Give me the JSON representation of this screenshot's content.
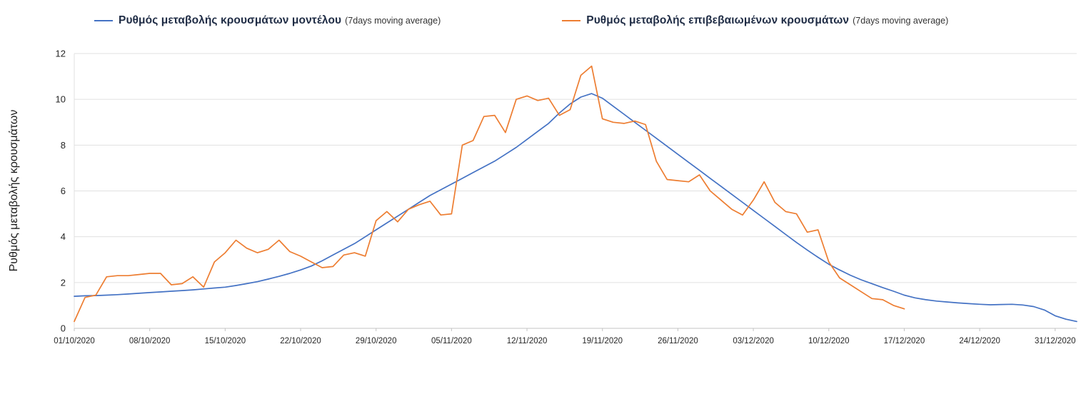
{
  "legend": {
    "items": [
      {
        "label": "Ρυθμός μεταβολής κρουσμάτων μοντέλου",
        "suffix": "(7days moving average)",
        "color": "#4472C4"
      },
      {
        "label": "Ρυθμός μεταβολής επιβεβαιωμένων κρουσμάτων",
        "suffix": "(7days moving average)",
        "color": "#ED7D31"
      }
    ]
  },
  "y_axis": {
    "title": "Ρυθμός μεταβολής κρουσμάτων"
  },
  "chart_data": {
    "type": "line",
    "title": "",
    "xlabel": "",
    "ylabel": "Ρυθμός μεταβολής κρουσμάτων",
    "ylim": [
      0,
      12
    ],
    "y_ticks": [
      0,
      2,
      4,
      6,
      8,
      10,
      12
    ],
    "grid": "horizontal",
    "legend_position": "top",
    "x_unit": "days since 01/10/2020",
    "x_domain_days": 93,
    "x_tick_days": [
      0,
      7,
      14,
      21,
      28,
      35,
      42,
      49,
      56,
      63,
      70,
      77,
      84,
      91
    ],
    "x_tick_labels": [
      "01/10/2020",
      "08/10/2020",
      "15/10/2020",
      "22/10/2020",
      "29/10/2020",
      "05/11/2020",
      "12/11/2020",
      "19/11/2020",
      "26/11/2020",
      "03/12/2020",
      "10/12/2020",
      "17/12/2020",
      "24/12/2020",
      "31/12/2020"
    ],
    "series": [
      {
        "name": "Ρυθμός μεταβολής κρουσμάτων μοντέλου (7days moving average)",
        "color": "#4472C4",
        "start_day": 0,
        "values": [
          1.4,
          1.42,
          1.43,
          1.45,
          1.47,
          1.5,
          1.53,
          1.56,
          1.59,
          1.62,
          1.65,
          1.68,
          1.72,
          1.76,
          1.8,
          1.87,
          1.95,
          2.04,
          2.15,
          2.27,
          2.4,
          2.55,
          2.72,
          2.95,
          3.2,
          3.45,
          3.7,
          4.0,
          4.3,
          4.6,
          4.9,
          5.2,
          5.5,
          5.8,
          6.05,
          6.3,
          6.55,
          6.8,
          7.05,
          7.3,
          7.6,
          7.9,
          8.25,
          8.6,
          8.95,
          9.4,
          9.8,
          10.1,
          10.25,
          10.05,
          9.7,
          9.35,
          9.0,
          8.65,
          8.3,
          7.95,
          7.6,
          7.25,
          6.9,
          6.55,
          6.2,
          5.85,
          5.5,
          5.15,
          4.8,
          4.45,
          4.1,
          3.75,
          3.42,
          3.1,
          2.8,
          2.55,
          2.32,
          2.12,
          1.95,
          1.78,
          1.62,
          1.45,
          1.33,
          1.25,
          1.19,
          1.15,
          1.11,
          1.08,
          1.05,
          1.03,
          1.04,
          1.05,
          1.02,
          0.95,
          0.8,
          0.55,
          0.4,
          0.3
        ]
      },
      {
        "name": "Ρυθμός μεταβολής επιβεβαιωμένων κρουσμάτων (7days moving average)",
        "color": "#ED7D31",
        "start_day": 0,
        "values": [
          0.3,
          1.35,
          1.45,
          2.25,
          2.3,
          2.3,
          2.35,
          2.4,
          2.4,
          1.9,
          1.95,
          2.25,
          1.8,
          2.9,
          3.3,
          3.85,
          3.5,
          3.3,
          3.45,
          3.85,
          3.35,
          3.15,
          2.9,
          2.65,
          2.7,
          3.2,
          3.3,
          3.15,
          4.7,
          5.1,
          4.65,
          5.2,
          5.4,
          5.55,
          4.95,
          5.0,
          8.0,
          8.2,
          9.25,
          9.3,
          8.55,
          10.0,
          10.15,
          9.95,
          10.05,
          9.3,
          9.55,
          11.05,
          11.45,
          9.15,
          9.0,
          8.95,
          9.05,
          8.9,
          7.3,
          6.5,
          6.45,
          6.4,
          6.7,
          6.0,
          5.6,
          5.2,
          4.95,
          5.6,
          6.4,
          5.5,
          5.1,
          5.0,
          4.2,
          4.3,
          2.9,
          2.2,
          1.9,
          1.6,
          1.3,
          1.25,
          1.0,
          0.85
        ]
      }
    ]
  }
}
